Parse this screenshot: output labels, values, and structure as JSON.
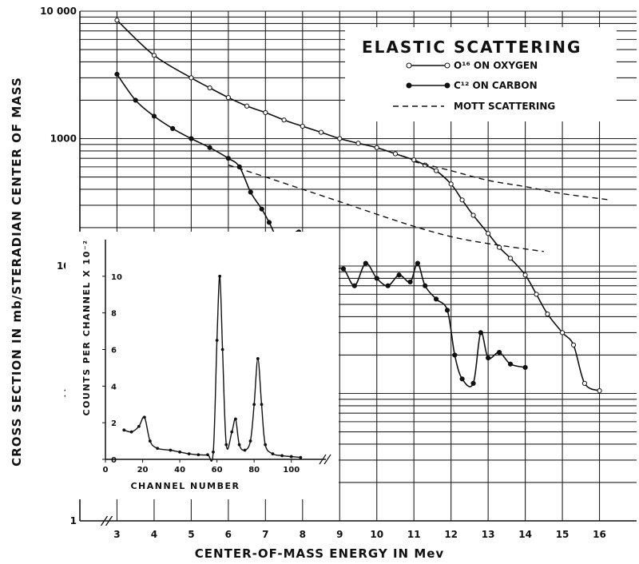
{
  "chart_data": [
    {
      "type": "line",
      "title": "ELASTIC SCATTERING",
      "xlabel": "CENTER-OF-MASS ENERGY IN Mev",
      "ylabel": "CROSS SECTION IN mb/STERADIAN CENTER OF MASS",
      "xlim": [
        2,
        17
      ],
      "ylim": [
        1,
        10000
      ],
      "yscale": "log",
      "x_ticks": [
        "3",
        "4",
        "5",
        "6",
        "7",
        "8",
        "9",
        "10",
        "11",
        "12",
        "13",
        "14",
        "15",
        "16"
      ],
      "y_ticks": [
        {
          "value": 1,
          "label": "1"
        },
        {
          "value": 10,
          "label": "10"
        },
        {
          "value": 100,
          "label": "100"
        },
        {
          "value": 1000,
          "label": "1000"
        },
        {
          "value": 10000,
          "label": "10 000"
        }
      ],
      "grid": true,
      "legend_position": "top-right",
      "series": [
        {
          "name": "O¹⁶ ON OXYGEN",
          "marker": "open-circle",
          "x": [
            3,
            4,
            5,
            5.5,
            6,
            6.5,
            7,
            7.5,
            8,
            8.5,
            9,
            9.5,
            10,
            10.5,
            11,
            11.3,
            11.6,
            12,
            12.3,
            12.6,
            13,
            13.3,
            13.6,
            14,
            14.3,
            14.6,
            15,
            15.3,
            15.6,
            16
          ],
          "y": [
            8500,
            4500,
            3000,
            2500,
            2100,
            1800,
            1600,
            1400,
            1250,
            1120,
            1000,
            920,
            850,
            760,
            680,
            620,
            560,
            440,
            330,
            250,
            180,
            140,
            115,
            85,
            60,
            42,
            30,
            24,
            12,
            10.5
          ]
        },
        {
          "name": "C¹² ON CARBON",
          "marker": "filled-circle",
          "x": [
            3,
            3.5,
            4,
            4.5,
            5,
            5.5,
            6,
            6.3,
            6.6,
            6.9,
            7.1,
            7.3,
            7.6,
            7.9,
            8.2,
            8.5,
            8.8,
            9.1,
            9.4,
            9.7,
            10,
            10.3,
            10.6,
            10.9,
            11.1,
            11.3,
            11.6,
            11.9,
            12.1,
            12.3,
            12.6,
            12.8,
            13,
            13.3,
            13.6,
            14
          ],
          "y": [
            3200,
            2000,
            1500,
            1200,
            1000,
            850,
            700,
            600,
            380,
            280,
            220,
            170,
            150,
            185,
            90,
            75,
            90,
            95,
            70,
            105,
            80,
            70,
            85,
            75,
            105,
            70,
            55,
            45,
            20,
            13,
            12,
            30,
            19,
            21,
            17,
            16
          ]
        },
        {
          "name": "MOTT SCATTERING",
          "marker": "dashed",
          "segments": [
            {
              "x": [
                6,
                7,
                8,
                9,
                10,
                11,
                12,
                13,
                14.5
              ],
              "y": [
                620,
                500,
                400,
                320,
                255,
                205,
                170,
                150,
                130
              ]
            },
            {
              "x": [
                11,
                12,
                13,
                14,
                15,
                16.3
              ],
              "y": [
                660,
                560,
                470,
                420,
                370,
                330
              ]
            }
          ]
        }
      ]
    },
    {
      "type": "line",
      "xlabel": "CHANNEL NUMBER",
      "ylabel": "COUNTS PER CHANNEL X 10⁻²",
      "xlim": [
        0,
        110
      ],
      "ylim": [
        0,
        12
      ],
      "x_ticks": [
        "0",
        "20",
        "40",
        "60",
        "80",
        "100"
      ],
      "y_ticks": [
        "0",
        "2",
        "4",
        "6",
        "8",
        "10"
      ],
      "series": [
        {
          "x": [
            10,
            14,
            18,
            21,
            24,
            28,
            35,
            40,
            45,
            50,
            55,
            58,
            60,
            61.5,
            63,
            65,
            68,
            70,
            72,
            75,
            78,
            80,
            82,
            84,
            86,
            90,
            95,
            100,
            105
          ],
          "y": [
            1.6,
            1.5,
            1.8,
            2.3,
            1.0,
            0.6,
            0.5,
            0.4,
            0.3,
            0.25,
            0.25,
            0.4,
            6.5,
            10.0,
            6.0,
            0.8,
            1.5,
            2.2,
            0.8,
            0.5,
            1.0,
            3.0,
            5.5,
            3.0,
            0.8,
            0.3,
            0.2,
            0.15,
            0.1
          ]
        }
      ]
    }
  ],
  "colors": {
    "ink": "#111111",
    "background": "#ffffff"
  }
}
